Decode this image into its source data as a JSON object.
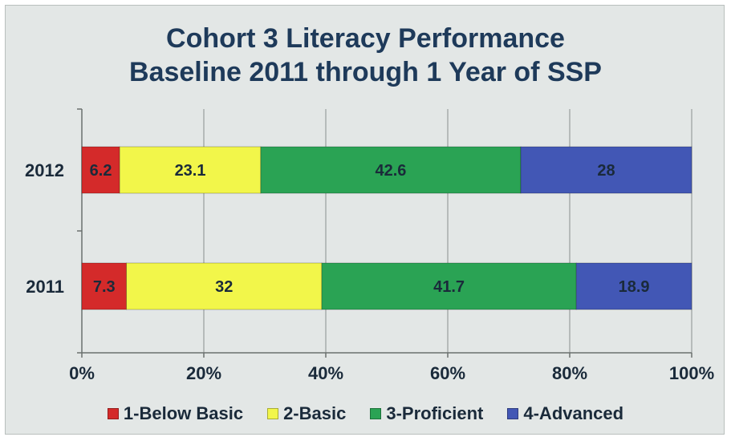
{
  "chart_data": {
    "type": "bar",
    "orientation": "horizontal",
    "stacked": "100%",
    "title_lines": [
      "Cohort 3 Literacy Performance",
      "Baseline 2011 through 1 Year of SSP"
    ],
    "categories": [
      "2012",
      "2011"
    ],
    "series": [
      {
        "name": "1-Below Basic",
        "color": "#d42a2a",
        "values": [
          6.2,
          7.3
        ],
        "labels": [
          "6.2",
          "7.3"
        ]
      },
      {
        "name": "2-Basic",
        "color": "#f2f64a",
        "values": [
          23.1,
          32
        ],
        "labels": [
          "23.1",
          "32"
        ]
      },
      {
        "name": "3-Proficient",
        "color": "#2aa354",
        "values": [
          42.6,
          41.7
        ],
        "labels": [
          "42.6",
          "41.7"
        ]
      },
      {
        "name": "4-Advanced",
        "color": "#4257b5",
        "values": [
          28,
          18.9
        ],
        "labels": [
          "28",
          "18.9"
        ]
      }
    ],
    "x_ticks": [
      "0%",
      "20%",
      "40%",
      "60%",
      "80%",
      "100%"
    ],
    "xlim": [
      0,
      100
    ],
    "grid": true,
    "legend_position": "bottom"
  }
}
